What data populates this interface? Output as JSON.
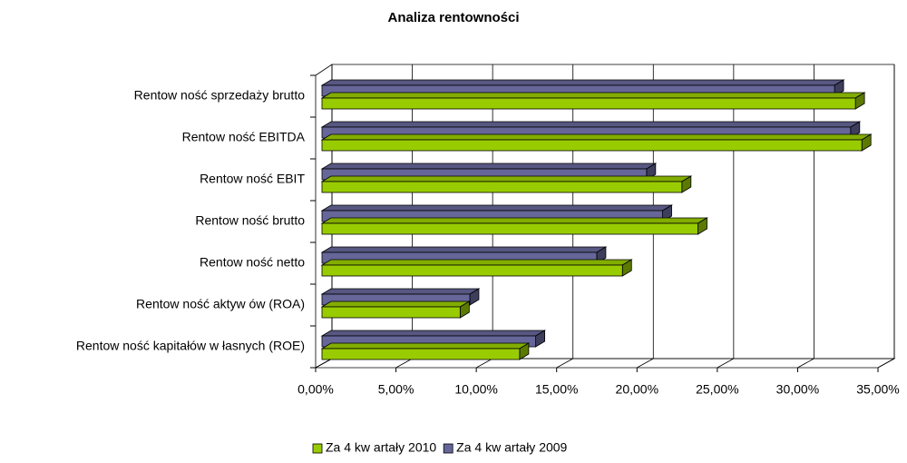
{
  "chart_data": {
    "type": "bar3d_horizontal",
    "title": "Analiza rentowności",
    "categories": [
      "Rentow ność sprzedaży brutto",
      "Rentow ność EBITDA",
      "Rentow ność EBIT",
      "Rentow ność brutto",
      "Rentow ność netto",
      "Rentow ność aktyw ów  (ROA)",
      "Rentow ność kapitałów  w łasnych (ROE)"
    ],
    "series": [
      {
        "name": "Za 4 kw artały 2010",
        "color": "#99cc00",
        "values": [
          33.2,
          33.6,
          22.4,
          23.4,
          18.7,
          8.6,
          12.3
        ]
      },
      {
        "name": "Za 4 kw artały 2009",
        "color": "#666699",
        "values": [
          31.9,
          32.9,
          20.2,
          21.2,
          17.1,
          9.2,
          13.3
        ]
      }
    ],
    "xlim": [
      0,
      35
    ],
    "xticks": [
      {
        "value": 0,
        "label": "0,00%"
      },
      {
        "value": 5,
        "label": "5,00%"
      },
      {
        "value": 10,
        "label": "10,00%"
      },
      {
        "value": 15,
        "label": "15,00%"
      },
      {
        "value": 20,
        "label": "20,00%"
      },
      {
        "value": 25,
        "label": "25,00%"
      },
      {
        "value": 30,
        "label": "30,00%"
      },
      {
        "value": 35,
        "label": "35,00%"
      }
    ],
    "grid": true,
    "legend": "bottom"
  }
}
